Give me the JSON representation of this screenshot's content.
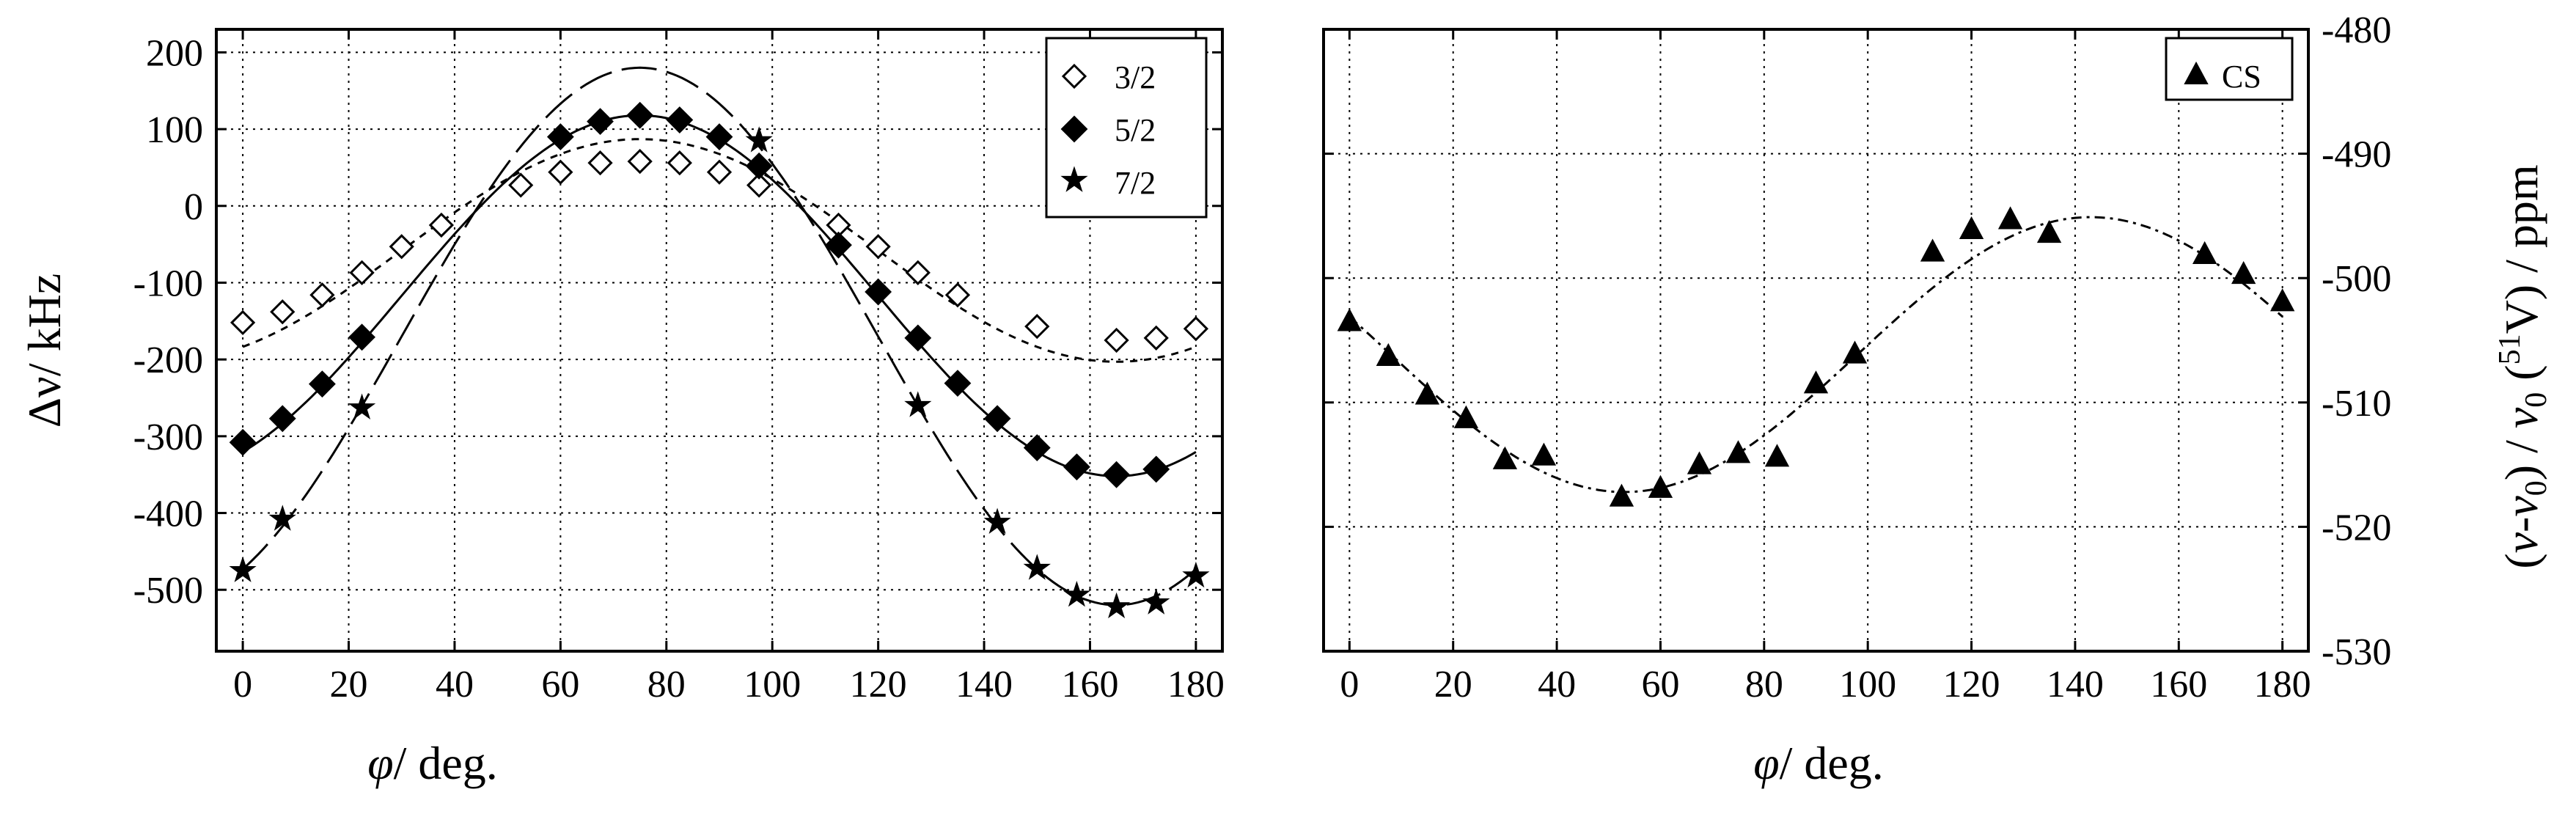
{
  "chart_data": [
    {
      "type": "scatter",
      "xlabel": "φ/ deg.",
      "ylabel": "Δν/ kHz",
      "xlim": [
        -5,
        185
      ],
      "ylim": [
        -580,
        230
      ],
      "xticks": [
        0,
        20,
        40,
        60,
        80,
        100,
        120,
        140,
        160,
        180
      ],
      "yticks": [
        200,
        100,
        0,
        -100,
        -200,
        -300,
        -400,
        -500
      ],
      "grid": true,
      "legend_position": "top-right",
      "series": [
        {
          "name": "3/2",
          "marker": "open-diamond",
          "x": [
            0,
            7.5,
            15,
            22.5,
            30,
            37.5,
            52.5,
            60,
            67.5,
            75,
            82.5,
            90,
            97.5,
            112.5,
            120,
            127.5,
            135,
            150,
            165,
            172.5,
            180
          ],
          "y": [
            -152,
            -138,
            -116,
            -87,
            -53,
            -25,
            27,
            44,
            56,
            58,
            56,
            44,
            27,
            -25,
            -53,
            -87,
            -116,
            -157,
            -175,
            -172,
            -160
          ],
          "fit": {
            "A": 145,
            "phase_deg": 75,
            "offset": -58,
            "period_deg": 180,
            "dash": "10,9"
          }
        },
        {
          "name": "5/2",
          "marker": "filled-diamond",
          "x": [
            0,
            7.5,
            15,
            22.5,
            60,
            67.5,
            75,
            82.5,
            90,
            97.5,
            112.5,
            120,
            127.5,
            135,
            142.5,
            150,
            157.5,
            165,
            172.5
          ],
          "y": [
            -308,
            -277,
            -232,
            -171,
            90,
            110,
            118,
            112,
            90,
            52,
            -51,
            -112,
            -172,
            -231,
            -277,
            -315,
            -340,
            -350,
            -343
          ],
          "fit": {
            "A": 235,
            "phase_deg": 75,
            "offset": -117,
            "period_deg": 180,
            "dash": ""
          }
        },
        {
          "name": "7/2",
          "marker": "star",
          "x": [
            0,
            7.5,
            22.5,
            97.5,
            127.5,
            142.5,
            150,
            157.5,
            165,
            172.5,
            180
          ],
          "y": [
            -475,
            -408,
            -263,
            85,
            -260,
            -412,
            -472,
            -507,
            -522,
            -517,
            -482
          ],
          "fit": {
            "A": 350,
            "phase_deg": 75,
            "offset": -170,
            "period_deg": 180,
            "dash": "48,14"
          }
        }
      ]
    },
    {
      "type": "scatter",
      "xlabel": "φ/ deg.",
      "ylabel": "(ν-ν0) / ν0 (51V) / ppm",
      "y_axis_side": "right",
      "xlim": [
        -5,
        185
      ],
      "ylim": [
        -530,
        -480
      ],
      "xticks": [
        0,
        20,
        40,
        60,
        80,
        100,
        120,
        140,
        160,
        180
      ],
      "yticks": [
        -480,
        -490,
        -500,
        -510,
        -520,
        -530
      ],
      "grid": true,
      "legend_position": "top-right",
      "series": [
        {
          "name": "CS",
          "marker": "filled-triangle",
          "x": [
            0,
            7.5,
            15,
            22.5,
            30,
            37.5,
            52.5,
            60,
            67.5,
            75,
            82.5,
            90,
            97.5,
            112.5,
            120,
            127.5,
            135,
            165,
            172.5,
            180
          ],
          "y": [
            -503.5,
            -506.3,
            -509.4,
            -511.3,
            -514.6,
            -514.3,
            -517.6,
            -516.9,
            -515.0,
            -514.1,
            -514.4,
            -508.5,
            -506.1,
            -497.9,
            -496.1,
            -495.3,
            -496.4,
            -498.1,
            -499.7,
            -501.9
          ],
          "fit": {
            "A": 11.05,
            "phase_deg": 143,
            "offset": -506.15,
            "period_deg": 180,
            "dash": "14,7,4,7"
          }
        }
      ]
    }
  ],
  "ui": {
    "left": {
      "xlabel_sym": "φ",
      "xlabel_rest": "/ deg.",
      "ylabel_sym": "Δν",
      "ylabel_rest": "/ kHz",
      "legend": [
        "3/2",
        "5/2",
        "7/2"
      ]
    },
    "right": {
      "xlabel_sym": "φ",
      "xlabel_rest": "/ deg.",
      "ylabel_open": "(",
      "ylabel_nu": "ν",
      "ylabel_dash": "-",
      "ylabel_nu0a": "ν",
      "ylabel_sub0a": "0",
      "ylabel_mid": ") / ",
      "ylabel_nu0b": "ν",
      "ylabel_sub0b": "0",
      "ylabel_paren": " (",
      "ylabel_sup51": "51",
      "ylabel_V": "V) / ppm",
      "legend": [
        "CS"
      ]
    }
  }
}
